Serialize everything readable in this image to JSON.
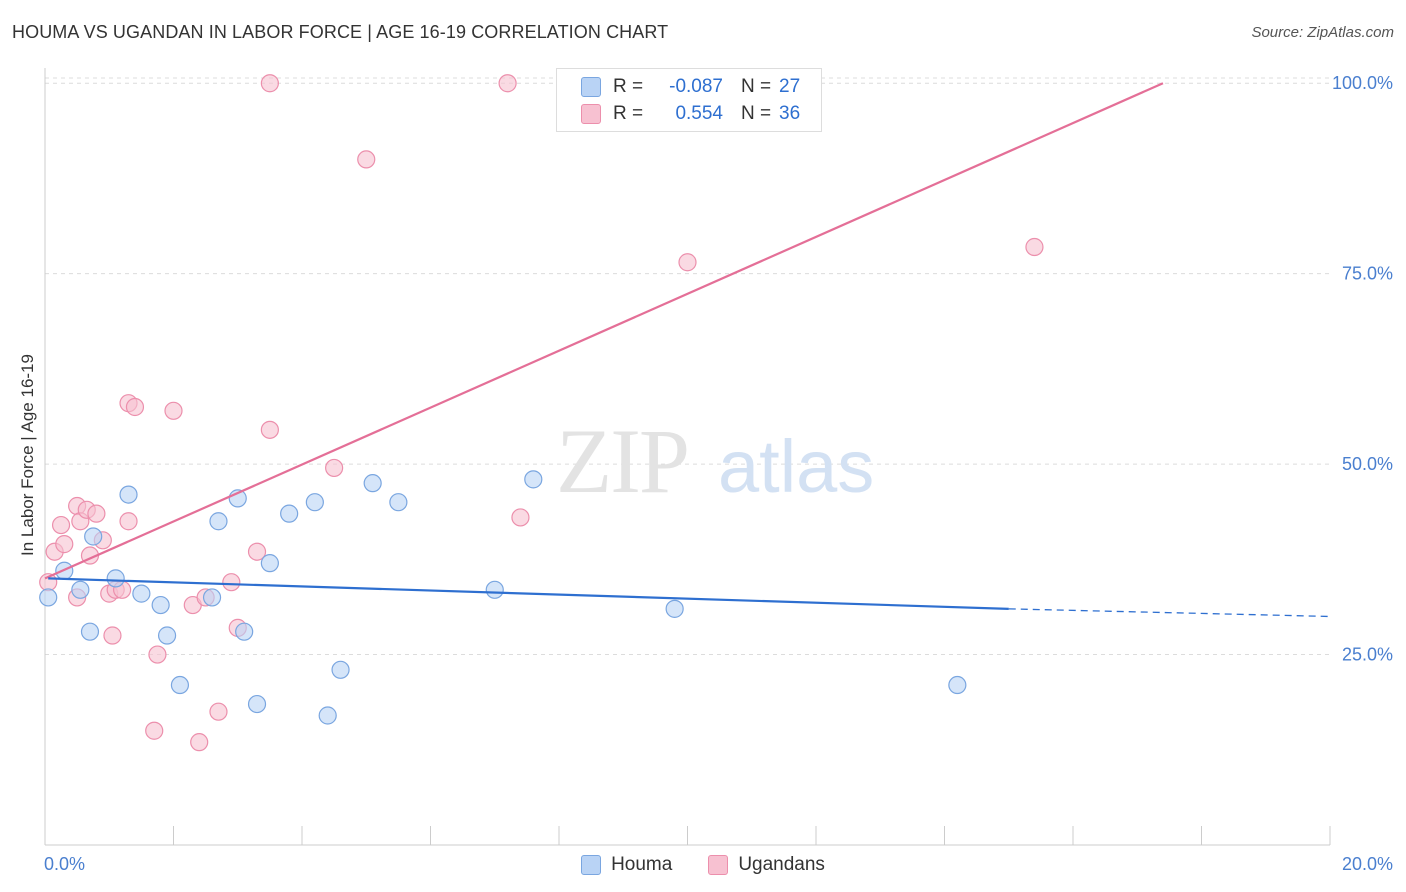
{
  "header": {
    "title": "HOUMA VS UGANDAN IN LABOR FORCE | AGE 16-19 CORRELATION CHART",
    "source": "Source: ZipAtlas.com"
  },
  "watermark": {
    "zip": "ZIP",
    "atlas": "atlas"
  },
  "legend": {
    "rows": [
      {
        "r_label": "R =",
        "r_value": "-0.087",
        "n_label": "N =",
        "n_value": "27"
      },
      {
        "r_label": "R =",
        "r_value": "0.554",
        "n_label": "N =",
        "n_value": "36"
      }
    ]
  },
  "colors": {
    "houma_fill": "#b9d3f5",
    "houma_stroke": "#7aa6e0",
    "houma_line": "#2e6fd0",
    "ugandan_fill": "#f7c1d1",
    "ugandan_stroke": "#ec8fac",
    "ugandan_line": "#e46f97",
    "grid": "#dcdcdc",
    "tick_text": "#4a7fcf"
  },
  "chart_data": {
    "type": "scatter",
    "title": "HOUMA VS UGANDAN IN LABOR FORCE | AGE 16-19 CORRELATION CHART",
    "xlabel": "",
    "ylabel": "In Labor Force | Age 16-19",
    "xlim": [
      0,
      20
    ],
    "ylim": [
      0,
      102
    ],
    "x_tick_labels": [
      "0.0%",
      "20.0%"
    ],
    "y_ticks": [
      25,
      50,
      75,
      100
    ],
    "y_tick_labels": [
      "25.0%",
      "50.0%",
      "75.0%",
      "100.0%"
    ],
    "grid": true,
    "legend_position": "top-center",
    "series": [
      {
        "name": "Houma",
        "points": [
          [
            0.05,
            32.5
          ],
          [
            0.3,
            36.0
          ],
          [
            0.55,
            33.5
          ],
          [
            0.7,
            28.0
          ],
          [
            0.75,
            40.5
          ],
          [
            1.1,
            35.0
          ],
          [
            1.3,
            46.0
          ],
          [
            1.5,
            33.0
          ],
          [
            1.8,
            31.5
          ],
          [
            1.9,
            27.5
          ],
          [
            2.1,
            21.0
          ],
          [
            2.6,
            32.5
          ],
          [
            2.7,
            42.5
          ],
          [
            3.0,
            45.5
          ],
          [
            3.1,
            28.0
          ],
          [
            3.3,
            18.5
          ],
          [
            3.5,
            37.0
          ],
          [
            3.8,
            43.5
          ],
          [
            4.2,
            45.0
          ],
          [
            4.4,
            17.0
          ],
          [
            4.6,
            23.0
          ],
          [
            5.1,
            47.5
          ],
          [
            5.5,
            45.0
          ],
          [
            7.0,
            33.5
          ],
          [
            7.6,
            48.0
          ],
          [
            9.8,
            31.0
          ],
          [
            14.2,
            21.0
          ]
        ],
        "trend": {
          "x": [
            0.05,
            15.0
          ],
          "y": [
            35.0,
            31.0
          ]
        },
        "trend_dashed": {
          "x": [
            15.0,
            20.0
          ],
          "y": [
            31.0,
            30.0
          ]
        }
      },
      {
        "name": "Ugandans",
        "points": [
          [
            0.05,
            34.5
          ],
          [
            0.15,
            38.5
          ],
          [
            0.25,
            42.0
          ],
          [
            0.3,
            39.5
          ],
          [
            0.5,
            44.5
          ],
          [
            0.5,
            32.5
          ],
          [
            0.55,
            42.5
          ],
          [
            0.65,
            44.0
          ],
          [
            0.7,
            38.0
          ],
          [
            0.8,
            43.5
          ],
          [
            0.9,
            40.0
          ],
          [
            1.0,
            33.0
          ],
          [
            1.05,
            27.5
          ],
          [
            1.1,
            33.5
          ],
          [
            1.2,
            33.5
          ],
          [
            1.3,
            42.5
          ],
          [
            1.3,
            58.0
          ],
          [
            1.4,
            57.5
          ],
          [
            1.7,
            15.0
          ],
          [
            1.75,
            25.0
          ],
          [
            2.0,
            57.0
          ],
          [
            2.3,
            31.5
          ],
          [
            2.4,
            13.5
          ],
          [
            2.5,
            32.5
          ],
          [
            2.7,
            17.5
          ],
          [
            2.9,
            34.5
          ],
          [
            3.0,
            28.5
          ],
          [
            3.3,
            38.5
          ],
          [
            3.5,
            54.5
          ],
          [
            4.5,
            49.5
          ],
          [
            3.5,
            100.0
          ],
          [
            5.0,
            90.0
          ],
          [
            7.2,
            100.0
          ],
          [
            7.4,
            43.0
          ],
          [
            10.0,
            76.5
          ],
          [
            15.4,
            78.5
          ]
        ],
        "trend": {
          "x": [
            0.0,
            17.4
          ],
          "y": [
            35.0,
            100.0
          ]
        }
      }
    ]
  },
  "bottom_legend": {
    "houma": "Houma",
    "ugandans": "Ugandans"
  }
}
